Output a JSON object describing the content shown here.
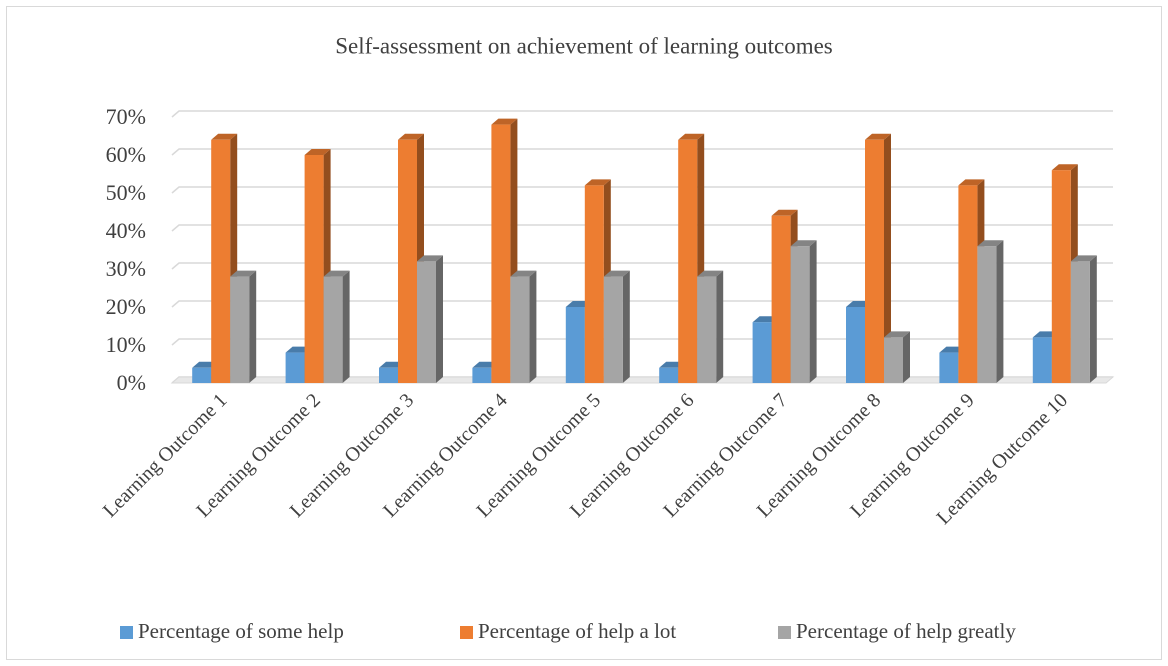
{
  "chart_data": {
    "type": "bar3d",
    "title": "Self-assessment on achievement of learning outcomes",
    "categories": [
      "Learning Outcome 1",
      "Learning Outcome 2",
      "Learning Outcome 3",
      "Learning Outcome 4",
      "Learning Outcome 5",
      "Learning Outcome 6",
      "Learning Outcome 7",
      "Learning Outcome 8",
      "Learning Outcome 9",
      "Learning Outcome 10"
    ],
    "series": [
      {
        "name": "Percentage of some help",
        "color": "#5b9bd5",
        "values": [
          4,
          8,
          4,
          4,
          20,
          4,
          16,
          20,
          8,
          12
        ]
      },
      {
        "name": "Percentage of help a lot",
        "color": "#ed7d31",
        "values": [
          64,
          60,
          64,
          68,
          52,
          64,
          44,
          64,
          52,
          56
        ]
      },
      {
        "name": "Percentage of help greatly",
        "color": "#a5a5a5",
        "values": [
          28,
          28,
          32,
          28,
          28,
          28,
          36,
          12,
          36,
          32
        ]
      }
    ],
    "ylim": [
      0,
      70
    ],
    "yticks": [
      {
        "value": 0,
        "label": "0%"
      },
      {
        "value": 10,
        "label": "10%"
      },
      {
        "value": 20,
        "label": "20%"
      },
      {
        "value": 30,
        "label": "30%"
      },
      {
        "value": 40,
        "label": "40%"
      },
      {
        "value": 50,
        "label": "50%"
      },
      {
        "value": 60,
        "label": "60%"
      },
      {
        "value": 70,
        "label": "70%"
      }
    ],
    "grid": true,
    "legend": "bottom"
  }
}
